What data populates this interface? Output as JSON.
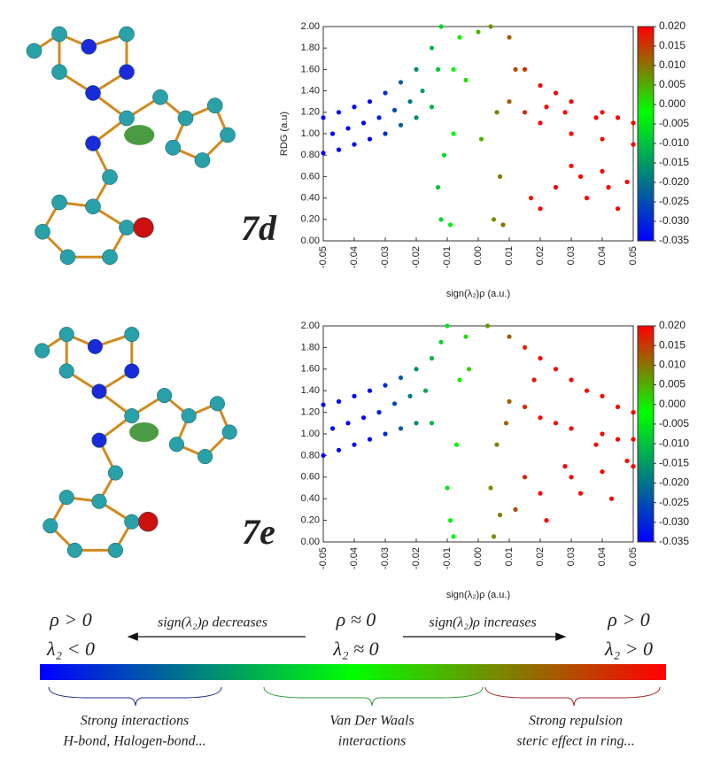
{
  "chart_data": [
    {
      "type": "scatter",
      "annotation": "7d",
      "ylabel": "RDG (a.u)",
      "xlabel": "sign(λ₂)ρ (a.u.)",
      "x": [
        -0.05,
        -0.05,
        -0.047,
        -0.045,
        -0.045,
        -0.042,
        -0.04,
        -0.04,
        -0.037,
        -0.035,
        -0.035,
        -0.032,
        -0.03,
        -0.03,
        -0.027,
        -0.025,
        -0.025,
        -0.022,
        -0.02,
        -0.02,
        -0.018,
        -0.015,
        -0.015,
        -0.013,
        -0.012,
        -0.012,
        -0.013,
        -0.011,
        -0.009,
        -0.008,
        -0.008,
        -0.006,
        -0.004,
        0,
        0.001,
        0.004,
        0.005,
        0.006,
        0.007,
        0.008,
        0.01,
        0.01,
        0.012,
        0.015,
        0.015,
        0.017,
        0.02,
        0.02,
        0.02,
        0.022,
        0.025,
        0.025,
        0.028,
        0.03,
        0.03,
        0.03,
        0.033,
        0.035,
        0.038,
        0.04,
        0.04,
        0.04,
        0.042,
        0.045,
        0.045,
        0.048,
        0.05,
        0.05
      ],
      "y": [
        1.15,
        0.82,
        1.0,
        1.2,
        0.85,
        1.05,
        1.25,
        0.9,
        1.1,
        1.3,
        0.95,
        1.15,
        1.38,
        1.0,
        1.22,
        1.48,
        1.08,
        1.3,
        1.6,
        1.15,
        1.4,
        1.8,
        1.25,
        1.6,
        2.0,
        0.2,
        0.5,
        0.8,
        0.15,
        1.0,
        1.6,
        1.9,
        1.5,
        1.95,
        0.95,
        2.0,
        0.2,
        1.2,
        0.6,
        0.15,
        1.9,
        1.3,
        1.6,
        1.6,
        1.2,
        0.4,
        1.45,
        1.1,
        0.3,
        1.25,
        1.38,
        0.5,
        1.2,
        1.3,
        1.0,
        0.7,
        0.6,
        0.4,
        1.15,
        1.2,
        0.95,
        0.65,
        0.5,
        1.15,
        0.3,
        0.55,
        1.1,
        0.9
      ],
      "xlim": [
        -0.05,
        0.05
      ],
      "xticks": [
        -0.05,
        -0.04,
        -0.03,
        -0.02,
        -0.01,
        {
          "value": 0,
          "label": "0.00"
        },
        0.01,
        0.02,
        0.03,
        0.04,
        0.05
      ],
      "ylim": [
        0,
        2
      ],
      "yticks": [
        {
          "value": 0,
          "label": "0.00"
        },
        {
          "value": 0.2,
          "label": "0.20"
        },
        {
          "value": 0.4,
          "label": "0.40"
        },
        {
          "value": 0.6,
          "label": "0.60"
        },
        {
          "value": 0.8,
          "label": "0.80"
        },
        {
          "value": 1,
          "label": "1.00"
        },
        {
          "value": 1.2,
          "label": "1.20"
        },
        {
          "value": 1.4,
          "label": "1.40"
        },
        {
          "value": 1.6,
          "label": "1.60"
        },
        {
          "value": 1.8,
          "label": "1.80"
        },
        {
          "value": 2,
          "label": "2.00"
        }
      ],
      "colorbar": {
        "lim": [
          -0.035,
          0.02
        ],
        "colors": [
          "#0000ff",
          "#00ff00",
          "#ff0000"
        ],
        "ticks": [
          {
            "value": 0.02,
            "label": "0.020"
          },
          {
            "value": 0.015,
            "label": "0.015"
          },
          {
            "value": 0.01,
            "label": "0.010"
          },
          {
            "value": 0.005,
            "label": "0.005"
          },
          {
            "value": 0,
            "label": "0.000"
          },
          {
            "value": -0.005,
            "label": "-0.005"
          },
          {
            "value": -0.01,
            "label": "-0.010"
          },
          {
            "value": -0.015,
            "label": "-0.015"
          },
          {
            "value": -0.02,
            "label": "-0.020"
          },
          {
            "value": -0.025,
            "label": "-0.025"
          },
          {
            "value": -0.03,
            "label": "-0.030"
          },
          {
            "value": -0.035,
            "label": "-0.035"
          }
        ]
      }
    },
    {
      "type": "scatter",
      "annotation": "7e",
      "xlabel": "sign(λ₂)ρ (a.u.)",
      "x": [
        -0.05,
        -0.05,
        -0.047,
        -0.045,
        -0.045,
        -0.042,
        -0.04,
        -0.04,
        -0.037,
        -0.035,
        -0.035,
        -0.032,
        -0.03,
        -0.03,
        -0.027,
        -0.025,
        -0.025,
        -0.022,
        -0.02,
        -0.02,
        -0.017,
        -0.015,
        -0.015,
        -0.012,
        -0.01,
        -0.01,
        -0.009,
        -0.008,
        -0.007,
        -0.006,
        -0.004,
        -0.003,
        0.003,
        0.004,
        0.005,
        0.006,
        0.007,
        0.009,
        0.01,
        0.01,
        0.012,
        0.015,
        0.015,
        0.015,
        0.018,
        0.02,
        0.02,
        0.02,
        0.022,
        0.025,
        0.025,
        0.028,
        0.03,
        0.03,
        0.03,
        0.033,
        0.035,
        0.038,
        0.04,
        0.04,
        0.04,
        0.043,
        0.045,
        0.045,
        0.048,
        0.05,
        0.05,
        0.05
      ],
      "y": [
        1.27,
        0.8,
        1.05,
        1.3,
        0.85,
        1.1,
        1.35,
        0.9,
        1.15,
        1.4,
        0.95,
        1.2,
        1.45,
        1.0,
        1.28,
        1.52,
        1.05,
        1.35,
        1.6,
        1.1,
        1.4,
        1.7,
        1.1,
        1.85,
        2.0,
        0.5,
        0.2,
        0.05,
        0.9,
        1.5,
        1.9,
        1.6,
        2.0,
        0.5,
        0.05,
        0.9,
        0.25,
        1.1,
        1.9,
        1.3,
        0.3,
        1.8,
        1.25,
        0.6,
        1.5,
        1.7,
        1.15,
        0.45,
        0.2,
        1.6,
        1.1,
        0.7,
        1.5,
        1.05,
        0.6,
        0.45,
        1.4,
        0.9,
        1.35,
        1.0,
        0.65,
        0.4,
        1.25,
        0.95,
        0.75,
        1.2,
        0.95,
        0.7
      ],
      "xlim": [
        -0.05,
        0.05
      ],
      "xticks": [
        -0.05,
        -0.04,
        -0.03,
        -0.02,
        -0.01,
        {
          "value": 0,
          "label": "0.00"
        },
        0.01,
        0.02,
        0.03,
        0.04,
        0.05
      ],
      "ylim": [
        0,
        2
      ],
      "yticks": [
        {
          "value": 0,
          "label": "0.00"
        },
        {
          "value": 0.2,
          "label": "0.20"
        },
        {
          "value": 0.4,
          "label": "0.40"
        },
        {
          "value": 0.6,
          "label": "0.60"
        },
        {
          "value": 0.8,
          "label": "0.80"
        },
        {
          "value": 1,
          "label": "1.00"
        },
        {
          "value": 1.2,
          "label": "1.20"
        },
        {
          "value": 1.4,
          "label": "1.40"
        },
        {
          "value": 1.6,
          "label": "1.60"
        },
        {
          "value": 1.8,
          "label": "1.80"
        },
        {
          "value": 2,
          "label": "2.00"
        }
      ],
      "colorbar": {
        "lim": [
          -0.035,
          0.02
        ],
        "colors": [
          "#0000ff",
          "#00ff00",
          "#ff0000"
        ],
        "ticks": [
          {
            "value": 0.02,
            "label": "0.020"
          },
          {
            "value": 0.015,
            "label": "0.015"
          },
          {
            "value": 0.01,
            "label": "0.010"
          },
          {
            "value": 0.005,
            "label": "0.005"
          },
          {
            "value": 0,
            "label": "0.000"
          },
          {
            "value": -0.005,
            "label": "-0.005"
          },
          {
            "value": -0.01,
            "label": "-0.010"
          },
          {
            "value": -0.015,
            "label": "-0.015"
          },
          {
            "value": -0.02,
            "label": "-0.020"
          },
          {
            "value": -0.025,
            "label": "-0.025"
          },
          {
            "value": -0.03,
            "label": "-0.030"
          },
          {
            "value": -0.035,
            "label": "-0.035"
          }
        ]
      }
    }
  ],
  "scale_legend": {
    "left": {
      "rho": "ρ > 0",
      "lambda": "λ₂ < 0"
    },
    "decreases": "sign(λ₂)ρ decreases",
    "center": {
      "rho": "ρ ≈ 0",
      "lambda": "λ₂ ≈ 0"
    },
    "increases": "sign(λ₂)ρ  increases",
    "right": {
      "rho": "ρ > 0",
      "lambda": "λ₂ > 0"
    },
    "groups": [
      {
        "line1": "Strong interactions",
        "line2": "H-bond, Halogen-bond..."
      },
      {
        "line1": "Van Der Waals",
        "line2": "interactions"
      },
      {
        "line1": "Strong repulsion",
        "line2": "steric effect in ring..."
      }
    ]
  }
}
